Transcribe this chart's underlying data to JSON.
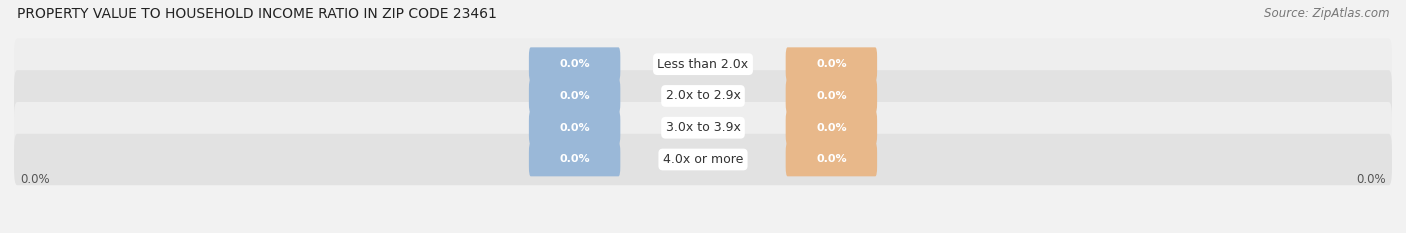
{
  "title": "PROPERTY VALUE TO HOUSEHOLD INCOME RATIO IN ZIP CODE 23461",
  "source": "Source: ZipAtlas.com",
  "categories": [
    "Less than 2.0x",
    "2.0x to 2.9x",
    "3.0x to 3.9x",
    "4.0x or more"
  ],
  "without_mortgage_values": [
    "0.0%",
    "0.0%",
    "0.0%",
    "0.0%"
  ],
  "with_mortgage_values": [
    "0.0%",
    "0.0%",
    "0.0%",
    "0.0%"
  ],
  "without_mortgage_color": "#9ab8d8",
  "with_mortgage_color": "#e8b88a",
  "row_bg_color_light": "#eeeeee",
  "row_bg_color_dark": "#e2e2e2",
  "fig_bg_color": "#f2f2f2",
  "title_fontsize": 10,
  "source_fontsize": 8.5,
  "cat_label_fontsize": 9,
  "bar_label_fontsize": 8,
  "axis_label_fontsize": 8.5,
  "legend_fontsize": 9,
  "figsize": [
    14.06,
    2.33
  ],
  "dpi": 100
}
